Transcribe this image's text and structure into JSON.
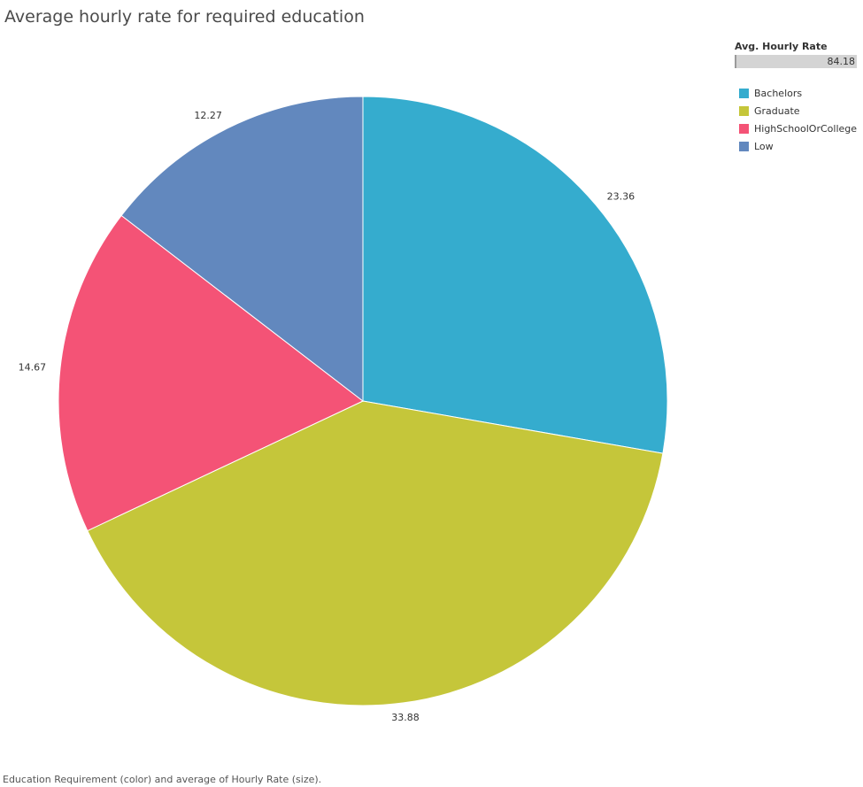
{
  "title": "Average hourly rate for required education",
  "footer": "Education Requirement (color) and average of Hourly Rate (size).",
  "size_legend": {
    "title": "Avg. Hourly Rate",
    "max_label": "84.18"
  },
  "chart_data": {
    "type": "pie",
    "title": "Average hourly rate for required education",
    "start_angle": "12 o'clock",
    "direction": "clockwise",
    "slices": [
      {
        "category": "Bachelors",
        "value": 23.36,
        "label": "23.36",
        "color": "#35acce"
      },
      {
        "category": "Graduate",
        "value": 33.88,
        "label": "33.88",
        "color": "#c5c63a"
      },
      {
        "category": "HighSchoolOrCollege",
        "value": 14.67,
        "label": "14.67",
        "color": "#f45376"
      },
      {
        "category": "Low",
        "value": 12.27,
        "label": "12.27",
        "color": "#6288be"
      }
    ],
    "legend": {
      "title": "",
      "placement": "top-right"
    }
  }
}
